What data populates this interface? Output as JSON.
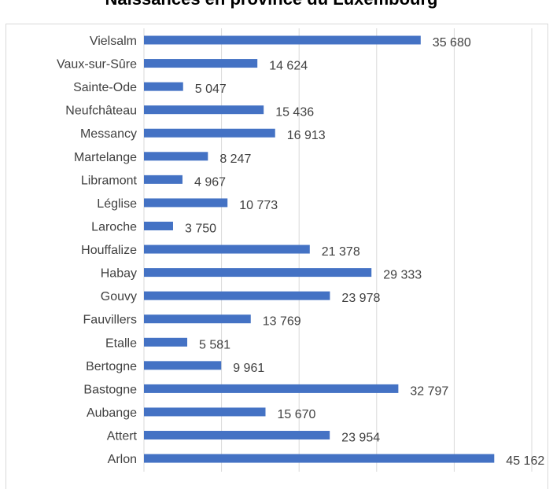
{
  "chart_data": {
    "type": "bar",
    "orientation": "horizontal",
    "title": "Naissances en province du Luxembourg",
    "categories": [
      "Vielsalm",
      "Vaux-sur-Sûre",
      "Sainte-Ode",
      "Neufchâteau",
      "Messancy",
      "Martelange",
      "Libramont",
      "Léglise",
      "Laroche",
      "Houffalize",
      "Habay",
      "Gouvy",
      "Fauvillers",
      "Etalle",
      "Bertogne",
      "Bastogne",
      "Aubange",
      "Attert",
      "Arlon"
    ],
    "values": [
      35680,
      14624,
      5047,
      15436,
      16913,
      8247,
      4967,
      10773,
      3750,
      21378,
      29333,
      23978,
      13769,
      5581,
      9961,
      32797,
      15670,
      23954,
      45162
    ],
    "value_labels": [
      "35 680",
      "14 624",
      "5 047",
      "15 436",
      "16 913",
      "8 247",
      "4 967",
      "10 773",
      "3 750",
      "21 378",
      "29 333",
      "23 978",
      "13 769",
      "5 581",
      "9 961",
      "32 797",
      "15 670",
      "23 954",
      "45 162"
    ],
    "color": "#4472c4",
    "xlim": [
      0,
      50000
    ],
    "xticks": [
      0,
      10000,
      20000,
      30000,
      40000,
      50000
    ],
    "grid": true
  }
}
